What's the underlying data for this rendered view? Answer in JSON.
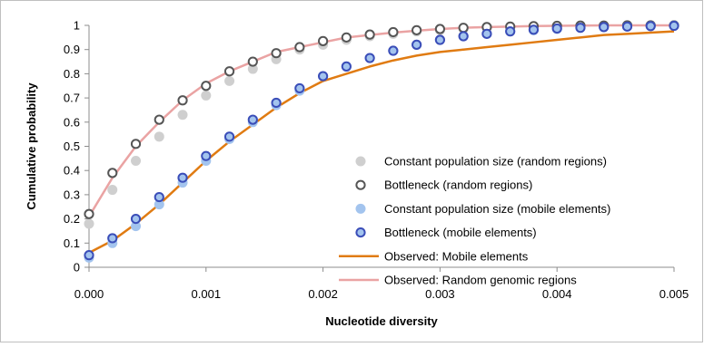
{
  "chart_data": {
    "type": "scatter",
    "title": "",
    "xlabel": "Nucleotide diversity",
    "ylabel": "Cumulative probability",
    "xlim": [
      0,
      0.005
    ],
    "ylim": [
      0,
      1
    ],
    "x_ticks": [
      "0.000",
      "0.001",
      "0.002",
      "0.003",
      "0.004",
      "0.005"
    ],
    "y_ticks": [
      "0",
      "0.1",
      "0.2",
      "0.3",
      "0.4",
      "0.5",
      "0.6",
      "0.7",
      "0.8",
      "0.9",
      "1"
    ],
    "grid": false,
    "legend_position": "lower-right",
    "x": [
      0,
      0.0002,
      0.0004,
      0.0006,
      0.0008,
      0.001,
      0.0012,
      0.0014,
      0.0016,
      0.0018,
      0.002,
      0.0022,
      0.0024,
      0.0026,
      0.0028,
      0.003,
      0.0032,
      0.0034,
      0.0036,
      0.0038,
      0.004,
      0.0042,
      0.0044,
      0.0046,
      0.0048,
      0.005
    ],
    "series": [
      {
        "name": "Constant population size (random regions)",
        "kind": "points",
        "marker": "filled",
        "color": "#cfcfcf",
        "values": [
          0.18,
          0.32,
          0.44,
          0.54,
          0.63,
          0.71,
          0.77,
          0.82,
          0.86,
          0.9,
          0.92,
          0.94,
          0.955,
          0.965,
          0.975,
          0.98,
          0.985,
          0.99,
          0.99,
          0.993,
          0.995,
          0.996,
          0.997,
          0.998,
          0.999,
          1.0
        ]
      },
      {
        "name": "Bottleneck (random regions)",
        "kind": "points",
        "marker": "ring",
        "color": "#555555",
        "values": [
          0.22,
          0.39,
          0.51,
          0.61,
          0.69,
          0.75,
          0.81,
          0.85,
          0.885,
          0.91,
          0.935,
          0.95,
          0.962,
          0.972,
          0.98,
          0.985,
          0.99,
          0.993,
          0.995,
          0.997,
          0.998,
          0.999,
          0.999,
          1.0,
          1.0,
          1.0
        ]
      },
      {
        "name": "Constant population size (mobile elements)",
        "kind": "points",
        "marker": "filled",
        "color": "#a3c4ee",
        "values": [
          0.04,
          0.1,
          0.17,
          0.26,
          0.35,
          0.44,
          0.53,
          0.6,
          0.67,
          0.73,
          0.79,
          0.83,
          0.865,
          0.895,
          0.92,
          0.94,
          0.955,
          0.965,
          0.975,
          0.98,
          0.985,
          0.99,
          0.993,
          0.995,
          0.997,
          0.999
        ]
      },
      {
        "name": "Bottleneck (mobile elements)",
        "kind": "points",
        "marker": "ring",
        "color": "#3a4db8",
        "fill": "#a3c4ee",
        "values": [
          0.05,
          0.12,
          0.2,
          0.29,
          0.37,
          0.46,
          0.54,
          0.61,
          0.68,
          0.74,
          0.79,
          0.83,
          0.865,
          0.895,
          0.92,
          0.94,
          0.955,
          0.965,
          0.975,
          0.982,
          0.987,
          0.99,
          0.993,
          0.995,
          0.997,
          0.998
        ]
      },
      {
        "name": "Observed: Mobile elements",
        "kind": "line",
        "color": "#e07b12",
        "values": [
          0.06,
          0.11,
          0.18,
          0.26,
          0.35,
          0.44,
          0.52,
          0.59,
          0.66,
          0.72,
          0.77,
          0.8,
          0.83,
          0.855,
          0.875,
          0.89,
          0.9,
          0.91,
          0.92,
          0.93,
          0.94,
          0.95,
          0.96,
          0.965,
          0.97,
          0.975
        ]
      },
      {
        "name": "Observed: Random genomic regions",
        "kind": "line",
        "color": "#eaa3a3",
        "values": [
          0.21,
          0.37,
          0.5,
          0.6,
          0.69,
          0.76,
          0.81,
          0.85,
          0.89,
          0.91,
          0.93,
          0.95,
          0.96,
          0.97,
          0.978,
          0.985,
          0.99,
          0.993,
          0.995,
          0.997,
          0.998,
          0.999,
          1.0,
          1.0,
          1.0,
          1.0
        ]
      }
    ]
  }
}
